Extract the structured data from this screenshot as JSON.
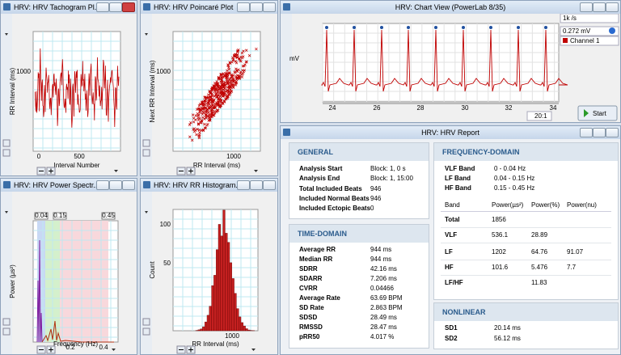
{
  "windows": {
    "tachogram": {
      "title": "HRV: HRV Tachogram Pl...",
      "y_label": "RR Interval (ms)",
      "x_label": "Interval Number",
      "y_ticks": [
        "1000"
      ],
      "x_ticks": [
        "0",
        "500"
      ]
    },
    "poincare": {
      "title": "HRV: HRV Poincaré Plot",
      "y_label": "Next RR Interval (ms)",
      "x_label": "RR Interval (ms)",
      "y_ticks": [
        "1000"
      ],
      "x_ticks": [
        "1000"
      ]
    },
    "spectrum": {
      "title": "HRV: HRV Power Spectr...",
      "y_label": "Power (µs²)",
      "x_label": "Frequency (Hz)",
      "y_ticks": [],
      "x_ticks": [
        "0.2",
        "0.4"
      ],
      "band_labels": [
        "0.04",
        "0.15",
        "0.45"
      ]
    },
    "histogram": {
      "title": "HRV: HRV RR Histogram...",
      "y_label": "Count",
      "x_label": "RR Interval (ms)",
      "y_ticks": [
        "50",
        "100"
      ],
      "x_ticks": [
        "1000"
      ]
    },
    "chart_view": {
      "title": "HRV: Chart View (PowerLab 8/35)",
      "y_label": "mV",
      "x_ticks": [
        "24",
        "26",
        "28",
        "30",
        "32",
        "34"
      ],
      "rate": "1k /s",
      "range": "0.272 mV",
      "channel": "Channel 1",
      "zoom": "20:1",
      "start": "Start"
    }
  },
  "report": {
    "title": "HRV: HRV Report",
    "general": {
      "heading": "GENERAL",
      "rows": [
        [
          "Analysis Start",
          "Block: 1, 0 s"
        ],
        [
          "Analysis End",
          "Block: 1, 15:00"
        ],
        [
          "Total Included Beats",
          "946"
        ],
        [
          "Included Normal Beats",
          "946"
        ],
        [
          "Included Ectopic Beats",
          "0"
        ]
      ]
    },
    "time_domain": {
      "heading": "TIME-DOMAIN",
      "rows": [
        [
          "Average RR",
          "944 ms"
        ],
        [
          "Median RR",
          "944 ms"
        ],
        [
          "SDRR",
          "42.16 ms"
        ],
        [
          "SDARR",
          "7.206 ms"
        ],
        [
          "CVRR",
          "0.04466"
        ],
        [
          "Average Rate",
          "63.69 BPM"
        ],
        [
          "SD Rate",
          "2.863 BPM"
        ],
        [
          "SDSD",
          "28.49 ms"
        ],
        [
          "RMSSD",
          "28.47 ms"
        ],
        [
          "pRR50",
          "4.017 %"
        ]
      ]
    },
    "frequency_domain": {
      "heading": "FREQUENCY-DOMAIN",
      "bands": [
        [
          "VLF Band",
          "0 - 0.04 Hz"
        ],
        [
          "LF Band",
          "0.04 - 0.15 Hz"
        ],
        [
          "HF Band",
          "0.15 - 0.45 Hz"
        ]
      ],
      "columns": [
        "Band",
        "Power(µs²)",
        "Power(%)",
        "Power(nu)"
      ],
      "rows": [
        [
          "Total",
          "1856",
          null,
          null
        ],
        [
          "VLF",
          "536.1",
          "28.89",
          null
        ],
        [
          "LF",
          "1202",
          "64.76",
          "91.07"
        ],
        [
          "HF",
          "101.6",
          "5.476",
          "7.7"
        ],
        [
          "LF/HF",
          null,
          "11.83",
          null
        ]
      ]
    },
    "nonlinear": {
      "heading": "NONLINEAR",
      "rows": [
        [
          "SD1",
          "20.14 ms"
        ],
        [
          "SD2",
          "56.12 ms"
        ]
      ]
    }
  }
}
